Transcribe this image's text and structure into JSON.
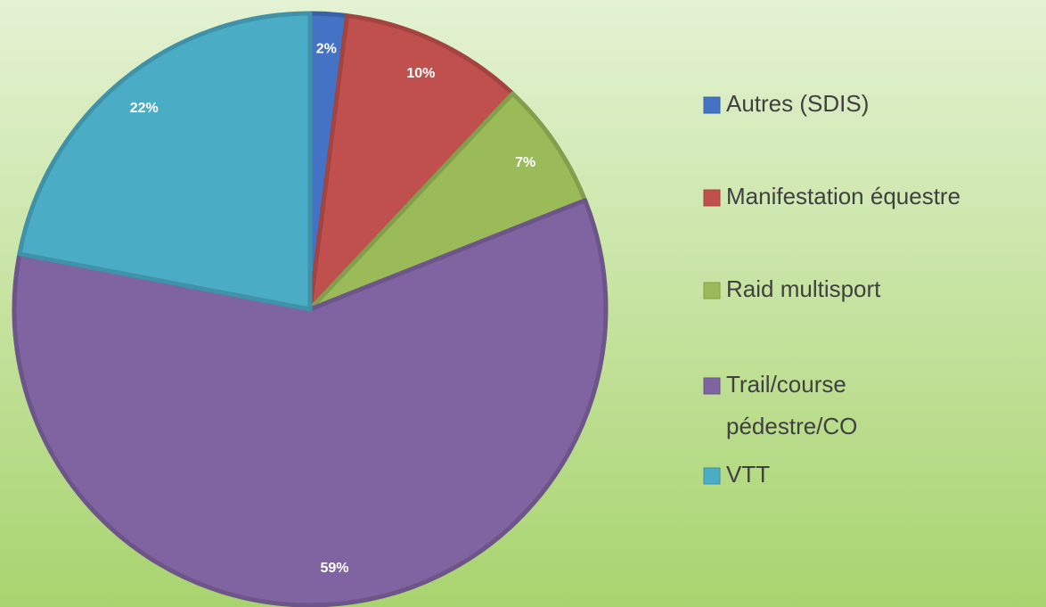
{
  "chart_data": {
    "type": "pie",
    "categories": [
      "Autres (SDIS)",
      "Manifestation équestre",
      "Raid multisport",
      "Trail/course pédestre/CO",
      "VTT"
    ],
    "values": [
      2,
      10,
      7,
      59,
      22
    ],
    "value_labels": [
      "2%",
      "10%",
      "7%",
      "59%",
      "22%"
    ],
    "colors": [
      "#4472c4",
      "#c0504d",
      "#9bbb59",
      "#8064a2",
      "#4bacc6"
    ],
    "legend": "right"
  }
}
